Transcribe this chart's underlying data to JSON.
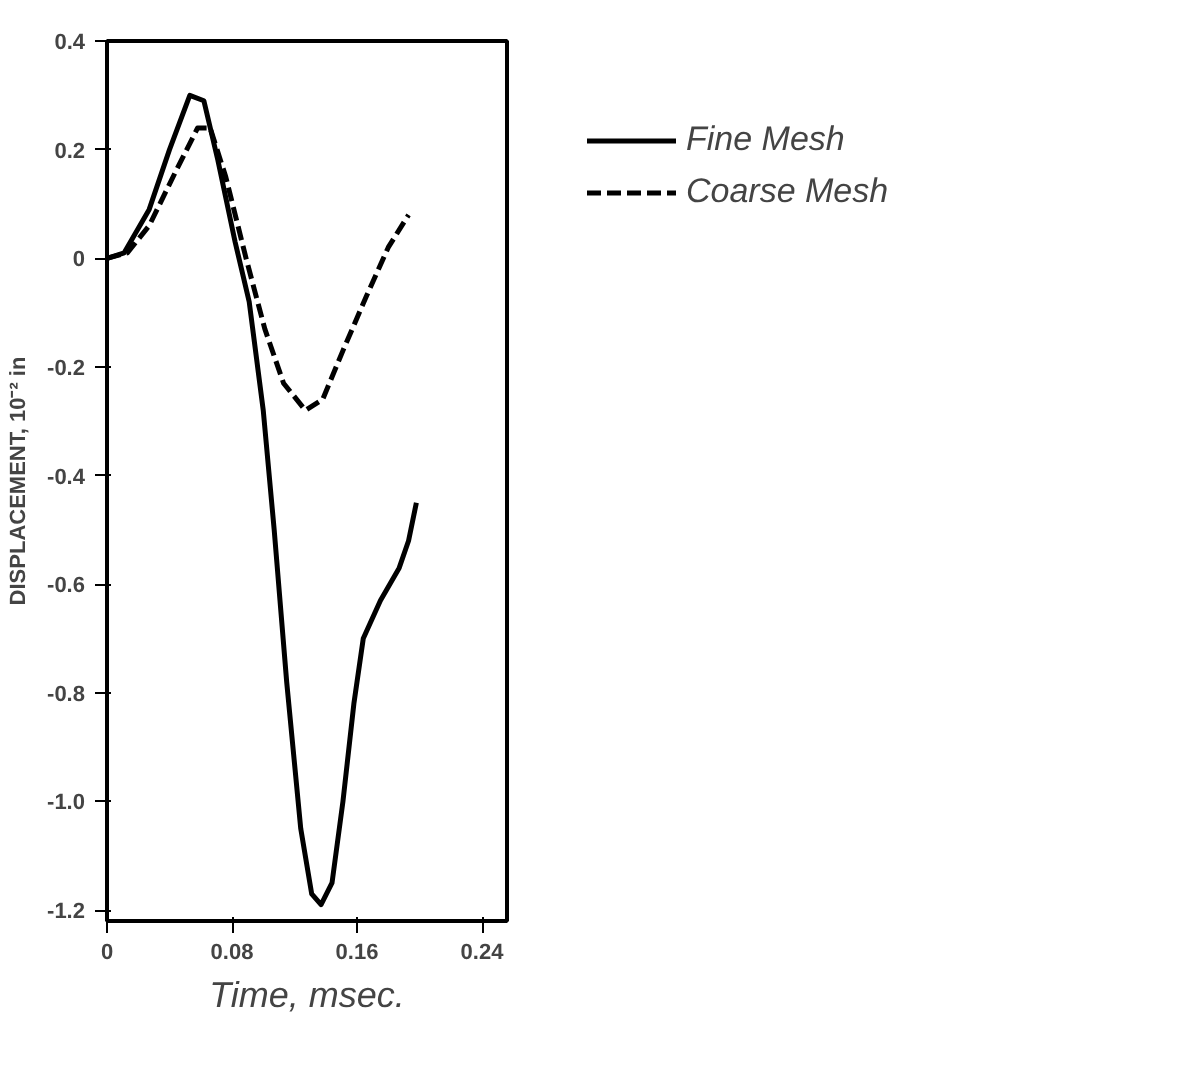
{
  "chart_data": {
    "type": "line",
    "xlabel": "Time, msec.",
    "ylabel": "DISPLACEMENT, 10⁻² in",
    "xlim": [
      0,
      0.256
    ],
    "ylim": [
      -1.22,
      0.4
    ],
    "xticks": [
      0,
      0.08,
      0.16,
      0.24
    ],
    "yticks": [
      0.4,
      0.2,
      0,
      -0.2,
      -0.4,
      -0.6,
      -0.8,
      {
        "value": -1.0,
        "label": "-1.0"
      },
      -1.2
    ],
    "legend": "right",
    "grid": false,
    "series": [
      {
        "name": "Fine Mesh",
        "color": "#000000",
        "line_style": "solid",
        "x": [
          0,
          0.011,
          0.027,
          0.04,
          0.053,
          0.062,
          0.071,
          0.082,
          0.091,
          0.1,
          0.107,
          0.115,
          0.124,
          0.131,
          0.137,
          0.144,
          0.151,
          0.158,
          0.164,
          0.175,
          0.187,
          0.193,
          0.198
        ],
        "values": [
          0,
          0.01,
          0.09,
          0.2,
          0.3,
          0.29,
          0.18,
          0.03,
          -0.08,
          -0.28,
          -0.5,
          -0.78,
          -1.05,
          -1.17,
          -1.19,
          -1.15,
          -1.0,
          -0.82,
          -0.7,
          -0.63,
          -0.57,
          -0.52,
          -0.45
        ]
      },
      {
        "name": "Coarse Mesh",
        "color": "#000000",
        "line_style": "dashed",
        "x": [
          0,
          0.013,
          0.027,
          0.044,
          0.058,
          0.066,
          0.076,
          0.089,
          0.101,
          0.113,
          0.127,
          0.138,
          0.151,
          0.166,
          0.18,
          0.193
        ],
        "values": [
          0,
          0.01,
          0.06,
          0.16,
          0.24,
          0.24,
          0.15,
          0.0,
          -0.13,
          -0.23,
          -0.28,
          -0.26,
          -0.17,
          -0.07,
          0.02,
          0.08
        ]
      }
    ]
  }
}
